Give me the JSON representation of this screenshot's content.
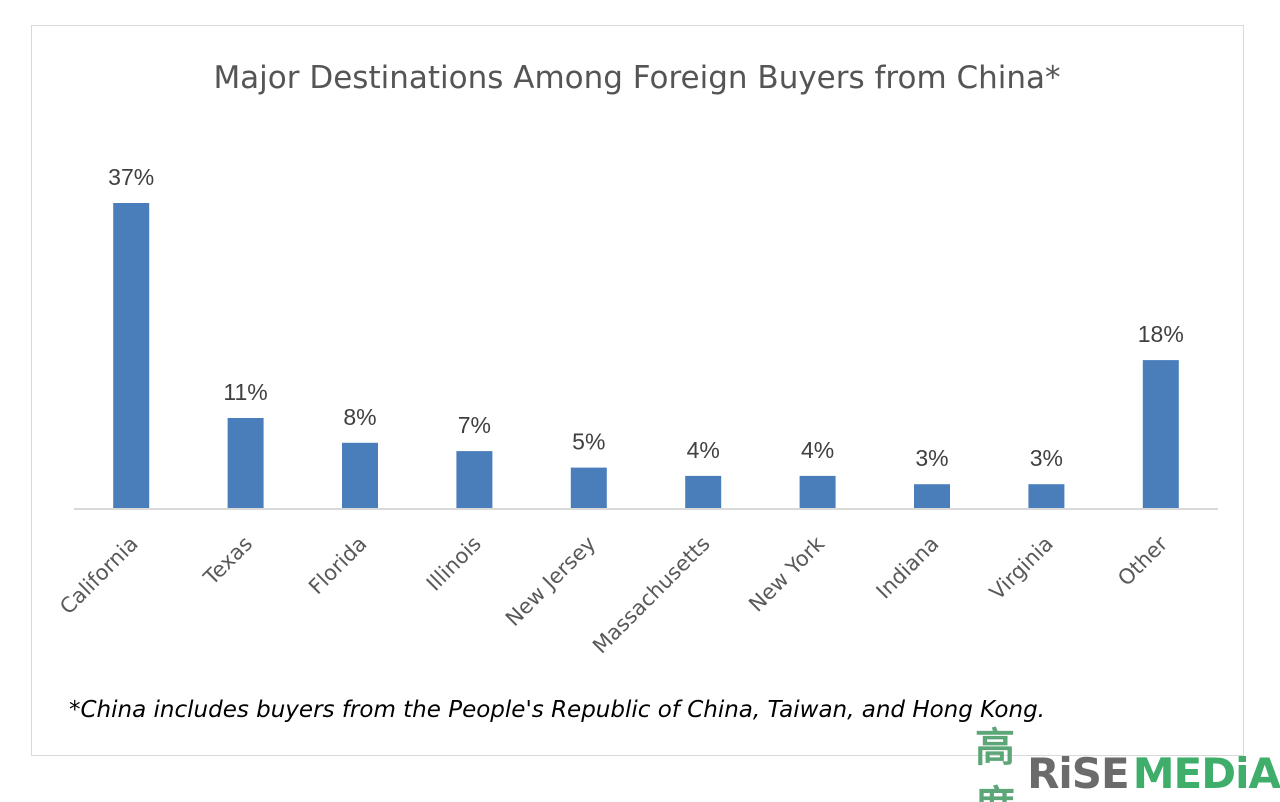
{
  "chart_data": {
    "type": "bar",
    "title": "Major Destinations Among Foreign Buyers from China*",
    "categories": [
      "California",
      "Texas",
      "Florida",
      "Illinois",
      "New Jersey",
      "Massachusetts",
      "New York",
      "Indiana",
      "Virginia",
      "Other"
    ],
    "values": [
      37,
      11,
      8,
      7,
      5,
      4,
      4,
      3,
      3,
      18
    ],
    "data_labels": [
      "37%",
      "11%",
      "8%",
      "7%",
      "5%",
      "4%",
      "4%",
      "3%",
      "3%",
      "18%"
    ],
    "unit": "%",
    "xlabel": "",
    "ylabel": "",
    "ylim": [
      0,
      40
    ],
    "grid": false,
    "legend": "none",
    "bar_color": "#4a7ebb",
    "footnote": "*China includes buyers from the People's Republic of China, Taiwan, and Hong Kong."
  },
  "watermark": {
    "text_cn": "高度",
    "text_rise": "RiSE",
    "text_media": "MEDiA"
  }
}
